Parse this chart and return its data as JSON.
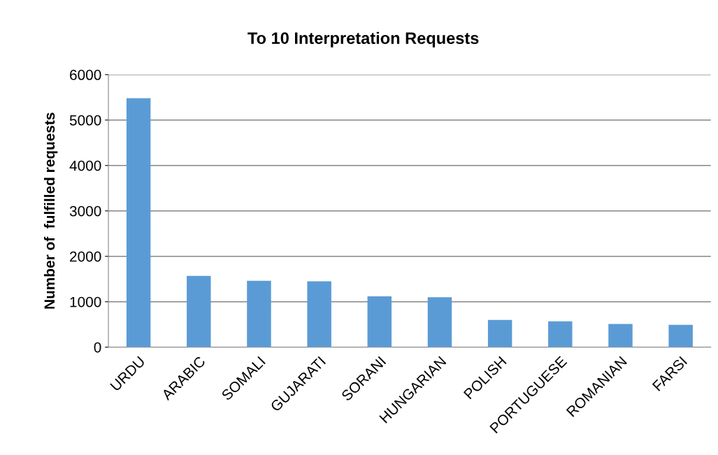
{
  "chart_data": {
    "type": "bar",
    "title": "To 10 Interpretation Requests",
    "ylabel": "Number of  fulfilled requests",
    "categories": [
      "URDU",
      "ARABIC",
      "SOMALI",
      "GUJARATI",
      "SORANI",
      "HUNGARIAN",
      "POLISH",
      "PORTUGUESE",
      "ROMANIAN",
      "FARSI"
    ],
    "values": [
      5480,
      1570,
      1460,
      1450,
      1120,
      1100,
      600,
      570,
      510,
      490
    ],
    "color": "#5b9bd5",
    "ylim": [
      0,
      6000
    ],
    "yticks": [
      0,
      1000,
      2000,
      3000,
      4000,
      5000,
      6000
    ],
    "grid": "y"
  }
}
